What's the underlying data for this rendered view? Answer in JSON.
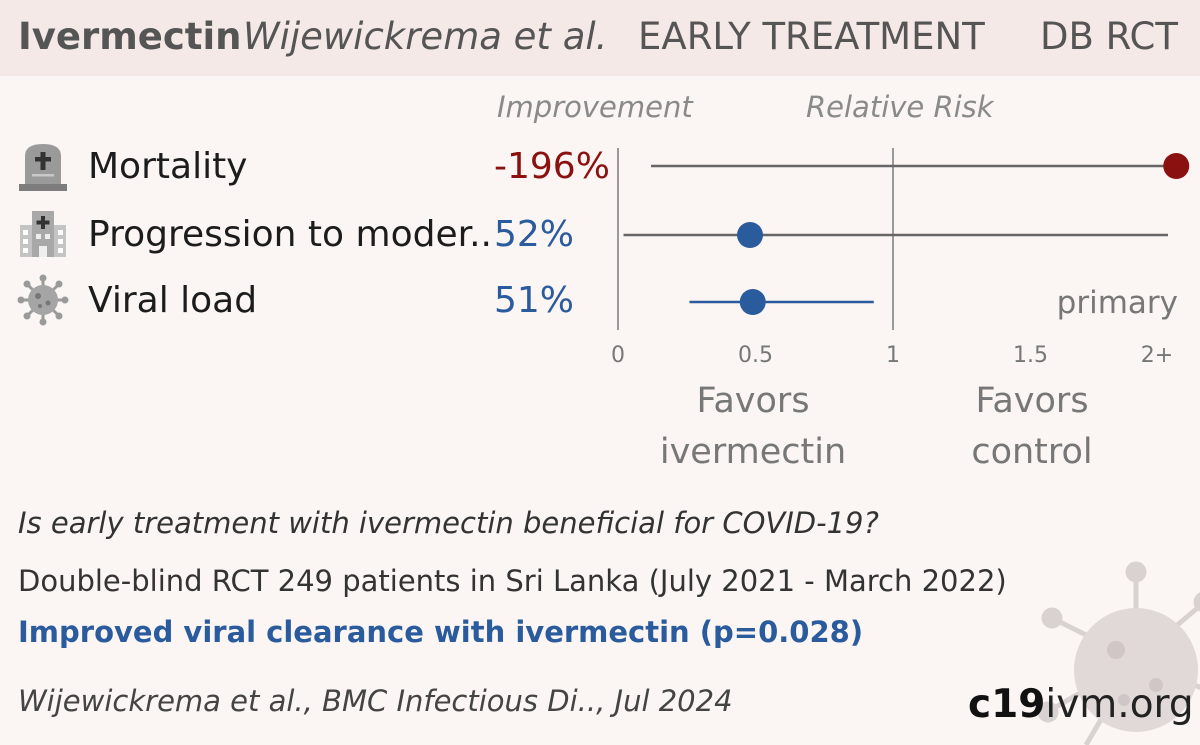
{
  "header": {
    "drug": "Ivermectin",
    "author": "Wijewickrema et al.",
    "stage": "EARLY TREATMENT",
    "design": "DB RCT"
  },
  "columns": {
    "improvement": "Improvement",
    "relative_risk": "Relative Risk"
  },
  "rows": [
    {
      "label": "Mortality",
      "improvement": "-196%",
      "icon": "tombstone-icon",
      "color": "#8b1010"
    },
    {
      "label": "Progression to moder..",
      "improvement": "52%",
      "icon": "hospital-icon",
      "color": "#2a5b9c"
    },
    {
      "label": "Viral load",
      "improvement": "51%",
      "icon": "virus-icon",
      "color": "#2a5b9c"
    }
  ],
  "chart_data": {
    "type": "forest",
    "x_axis": {
      "ticks": [
        "0",
        "0.5",
        "1",
        "1.5",
        "2+"
      ],
      "range": [
        0,
        2
      ]
    },
    "series": [
      {
        "outcome": "Mortality",
        "rr": 2.96,
        "ci_low": 0.12,
        "ci_high": 2.96,
        "color": "#8b1010",
        "ci_color": "#666666"
      },
      {
        "outcome": "Progression to moder..",
        "rr": 0.48,
        "ci_low": 0.02,
        "ci_high": 2.0,
        "color": "#2a5b9c",
        "ci_color": "#666666"
      },
      {
        "outcome": "Viral load",
        "rr": 0.49,
        "ci_low": 0.26,
        "ci_high": 0.93,
        "color": "#2a5b9c",
        "ci_color": "#2a5b9c",
        "note": "primary"
      }
    ],
    "favors_left": [
      "Favors",
      "ivermectin"
    ],
    "favors_right": [
      "Favors",
      "control"
    ]
  },
  "summary": {
    "question": "Is early treatment with ivermectin beneficial for COVID-19?",
    "design": "Double-blind RCT 249 patients in Sri Lanka (July 2021 - March 2022)",
    "conclusion": "Improved viral clearance with ivermectin (p=0.028)",
    "citation": "Wijewickrema et al., BMC Infectious Di.., Jul 2024"
  },
  "brand": {
    "bold": "c19",
    "rest": "ivm.org"
  }
}
